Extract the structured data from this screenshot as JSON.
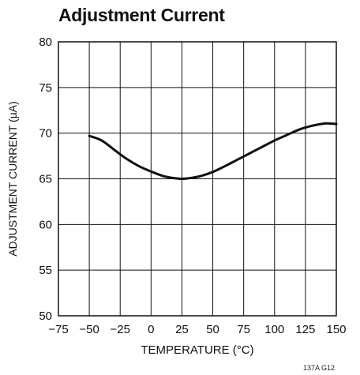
{
  "chart_data": {
    "type": "line",
    "title": "Adjustment Current",
    "xlabel": "TEMPERATURE (°C)",
    "ylabel": "ADJUSTMENT CURRENT (µA)",
    "figure_code": "137A G12",
    "xlim": [
      -75,
      150
    ],
    "ylim": [
      50,
      80
    ],
    "x_ticks": [
      "−75",
      "−50",
      "−25",
      "0",
      "25",
      "50",
      "75",
      "100",
      "125",
      "150"
    ],
    "x_tick_values": [
      -75,
      -50,
      -25,
      0,
      25,
      50,
      75,
      100,
      125,
      150
    ],
    "y_ticks": [
      "50",
      "55",
      "60",
      "65",
      "70",
      "75",
      "80"
    ],
    "y_tick_values": [
      50,
      55,
      60,
      65,
      70,
      75,
      80
    ],
    "grid": true,
    "legend": "none",
    "series": [
      {
        "x": [
          -50,
          -40,
          -30,
          -20,
          -10,
          0,
          10,
          20,
          25,
          30,
          40,
          50,
          60,
          70,
          80,
          90,
          100,
          110,
          120,
          130,
          140,
          145,
          150
        ],
        "y": [
          69.7,
          69.2,
          68.2,
          67.2,
          66.4,
          65.8,
          65.3,
          65.05,
          65.0,
          65.05,
          65.3,
          65.75,
          66.4,
          67.1,
          67.8,
          68.5,
          69.2,
          69.8,
          70.4,
          70.8,
          71.05,
          71.05,
          71.0
        ]
      }
    ],
    "colors": {
      "line": "#111111",
      "grid": "#111111"
    }
  }
}
